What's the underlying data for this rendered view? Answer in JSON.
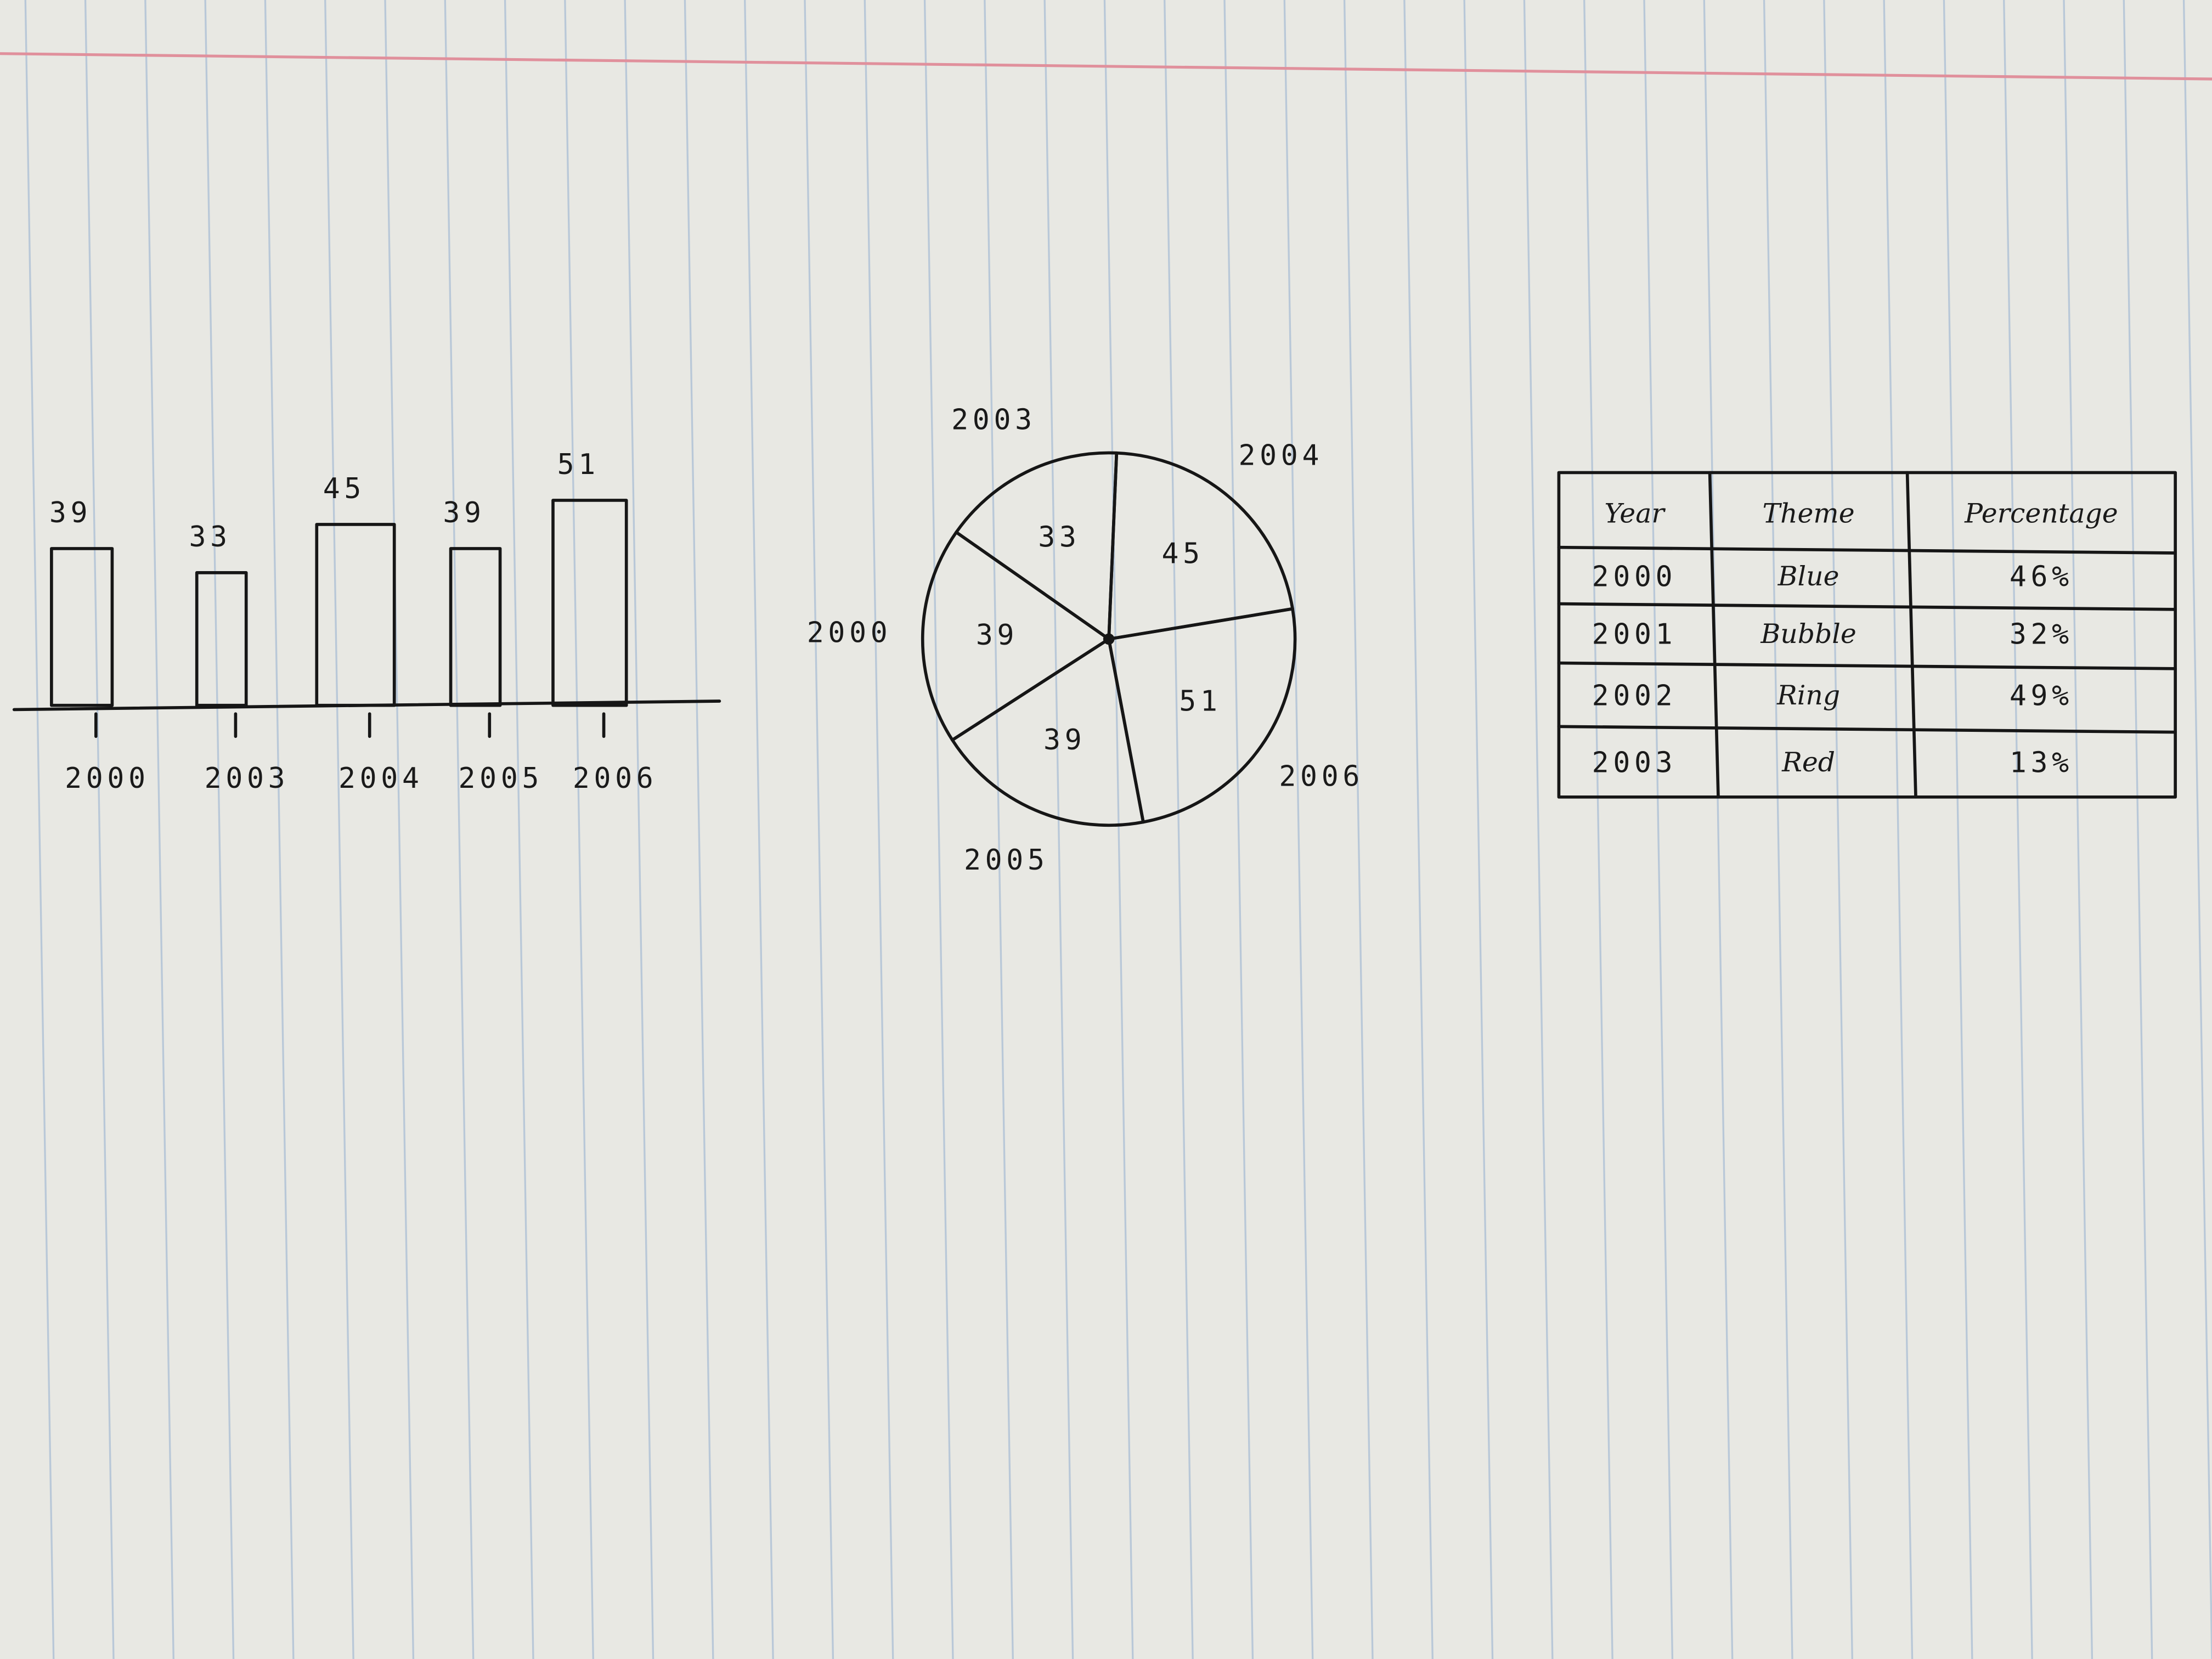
{
  "chart_data": [
    {
      "type": "bar",
      "categories": [
        "2000",
        "2003",
        "2004",
        "2005",
        "2006"
      ],
      "values": [
        39,
        33,
        45,
        39,
        51
      ],
      "color": "#161616"
    },
    {
      "type": "pie",
      "categories": [
        "2003",
        "2004",
        "2006",
        "2005",
        "2000"
      ],
      "values": [
        33,
        45,
        51,
        39,
        39
      ],
      "color": "#161616"
    }
  ],
  "table": {
    "header": [
      "Year",
      "Theme",
      "Percentage"
    ],
    "rows": [
      [
        "2000",
        "Blue",
        "46%"
      ],
      [
        "2001",
        "Bubble",
        "32%"
      ],
      [
        "2002",
        "Ring",
        "49%"
      ],
      [
        "2003",
        "Red",
        "13%"
      ]
    ]
  }
}
